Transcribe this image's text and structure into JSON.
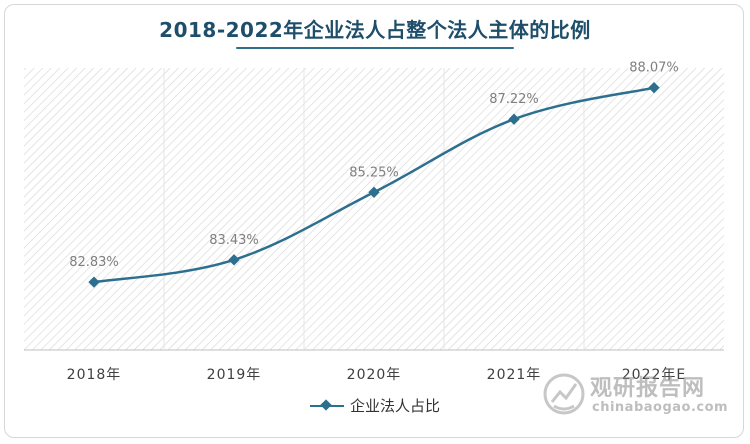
{
  "page": {
    "title": "2018-2022年企业法人占整个法人主体的比例",
    "watermark_cn": "观研报告网",
    "watermark_en": "chinabaogao.com"
  },
  "colors": {
    "series": "#2d6f8f",
    "title": "#1f4e6b",
    "hatch": "#d4d4d4",
    "label": "#7f7f7f"
  },
  "chart_data": {
    "type": "line",
    "title": "2018-2022年企业法人占整个法人主体的比例",
    "categories": [
      "2018年",
      "2019年",
      "2020年",
      "2021年",
      "2022年E"
    ],
    "series": [
      {
        "name": "企业法人占比",
        "values": [
          82.83,
          83.43,
          85.25,
          87.22,
          88.07
        ],
        "labels": [
          "82.83%",
          "83.43%",
          "85.25%",
          "87.22%",
          "88.07%"
        ]
      }
    ],
    "ylim": [
      81.0,
      88.6
    ],
    "grid": false,
    "legend": "bottom",
    "marker": "diamond",
    "smooth": true
  }
}
